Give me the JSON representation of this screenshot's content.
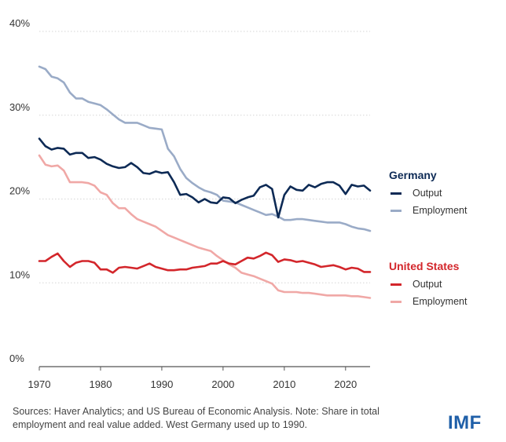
{
  "chart_data": {
    "type": "line",
    "ylim": [
      0,
      40
    ],
    "xlim": [
      1970,
      2024
    ],
    "y_ticks": [
      0,
      10,
      20,
      30,
      40
    ],
    "y_tick_labels": [
      "0%",
      "10%",
      "20%",
      "30%",
      "40%"
    ],
    "x_ticks": [
      1970,
      1980,
      1990,
      2000,
      2010,
      2020
    ],
    "x_tick_labels": [
      "1970",
      "1980",
      "1990",
      "2000",
      "2010",
      "2020"
    ],
    "grid": "horizontal",
    "x": [
      1970,
      1971,
      1972,
      1973,
      1974,
      1975,
      1976,
      1977,
      1978,
      1979,
      1980,
      1981,
      1982,
      1983,
      1984,
      1985,
      1986,
      1987,
      1988,
      1989,
      1990,
      1991,
      1992,
      1993,
      1994,
      1995,
      1996,
      1997,
      1998,
      1999,
      2000,
      2001,
      2002,
      2003,
      2004,
      2005,
      2006,
      2007,
      2008,
      2009,
      2010,
      2011,
      2012,
      2013,
      2014,
      2015,
      2016,
      2017,
      2018,
      2019,
      2020,
      2021,
      2022,
      2023,
      2024
    ],
    "legend": [
      {
        "group": "Germany",
        "color": "#b02a2a",
        "title_color": "#0d2a55",
        "items": [
          {
            "label": "Output",
            "series": 0
          },
          {
            "label": "Employment",
            "series": 1
          }
        ]
      },
      {
        "group": "United States",
        "title_color": "#d3262b",
        "items": [
          {
            "label": "Output",
            "series": 2
          },
          {
            "label": "Employment",
            "series": 3
          }
        ]
      }
    ],
    "series": [
      {
        "name": "Output",
        "group": "Germany",
        "color": "#0d2a55",
        "values": [
          27.2,
          26.3,
          25.9,
          26.1,
          26.0,
          25.3,
          25.5,
          25.5,
          24.9,
          25.0,
          24.7,
          24.2,
          23.9,
          23.7,
          23.8,
          24.3,
          23.8,
          23.1,
          23.0,
          23.3,
          23.1,
          23.2,
          22.0,
          20.5,
          20.6,
          20.2,
          19.6,
          20.0,
          19.6,
          19.5,
          20.2,
          20.1,
          19.5,
          19.9,
          20.2,
          20.4,
          21.4,
          21.7,
          21.2,
          17.8,
          20.5,
          21.5,
          21.1,
          21.0,
          21.7,
          21.4,
          21.8,
          22.0,
          22.0,
          21.6,
          20.6,
          21.7,
          21.5,
          21.6,
          21.0
        ]
      },
      {
        "name": "Employment",
        "group": "Germany",
        "color": "#9aabc7",
        "values": [
          35.8,
          35.5,
          34.6,
          34.4,
          33.9,
          32.7,
          32.0,
          32.0,
          31.6,
          31.4,
          31.2,
          30.7,
          30.1,
          29.5,
          29.1,
          29.1,
          29.1,
          28.8,
          28.5,
          28.4,
          28.3,
          26.0,
          25.1,
          23.6,
          22.5,
          21.9,
          21.4,
          21.0,
          20.8,
          20.5,
          19.8,
          19.7,
          19.6,
          19.3,
          19.0,
          18.7,
          18.4,
          18.1,
          18.2,
          17.9,
          17.5,
          17.5,
          17.6,
          17.6,
          17.5,
          17.4,
          17.3,
          17.2,
          17.2,
          17.2,
          17.0,
          16.7,
          16.5,
          16.4,
          16.2
        ]
      },
      {
        "name": "Output",
        "group": "United States",
        "color": "#d3262b",
        "values": [
          12.6,
          12.6,
          13.1,
          13.5,
          12.6,
          11.9,
          12.4,
          12.6,
          12.6,
          12.4,
          11.6,
          11.6,
          11.2,
          11.8,
          11.9,
          11.8,
          11.7,
          12.0,
          12.3,
          11.9,
          11.7,
          11.5,
          11.5,
          11.6,
          11.6,
          11.8,
          11.9,
          12.0,
          12.3,
          12.3,
          12.6,
          12.3,
          12.2,
          12.6,
          13.0,
          12.9,
          13.2,
          13.6,
          13.3,
          12.5,
          12.8,
          12.7,
          12.5,
          12.6,
          12.4,
          12.2,
          11.9,
          12.0,
          12.1,
          11.9,
          11.6,
          11.8,
          11.7,
          11.3,
          11.3
        ]
      },
      {
        "name": "Employment",
        "group": "United States",
        "color": "#f0a8a6",
        "values": [
          25.2,
          24.1,
          23.9,
          24.0,
          23.4,
          22.0,
          22.0,
          22.0,
          21.9,
          21.6,
          20.8,
          20.5,
          19.5,
          18.9,
          18.9,
          18.2,
          17.6,
          17.3,
          17.0,
          16.7,
          16.2,
          15.7,
          15.4,
          15.1,
          14.8,
          14.5,
          14.2,
          14.0,
          13.8,
          13.2,
          12.7,
          12.2,
          11.8,
          11.2,
          11.0,
          10.8,
          10.5,
          10.2,
          9.9,
          9.1,
          8.9,
          8.9,
          8.9,
          8.8,
          8.8,
          8.7,
          8.6,
          8.5,
          8.5,
          8.5,
          8.5,
          8.4,
          8.4,
          8.3,
          8.2
        ]
      }
    ]
  },
  "legend_titles": {
    "germany": "Germany",
    "united_states": "United States"
  },
  "legend_labels": {
    "germany_output": "Output",
    "germany_employment": "Employment",
    "us_output": "Output",
    "us_employment": "Employment"
  },
  "source_note": "Sources: Haver Analytics; and US Bureau of Economic Analysis. Note: Share in total employment and real value added. West Germany used up to 1990.",
  "logo_text": "IMF",
  "colors": {
    "germany_output": "#0d2a55",
    "germany_employment": "#9aabc7",
    "us_output": "#d3262b",
    "us_employment": "#f0a8a6",
    "germany_title": "#0d2a55",
    "us_title": "#d3262b",
    "logo": "#1f5fa8"
  }
}
